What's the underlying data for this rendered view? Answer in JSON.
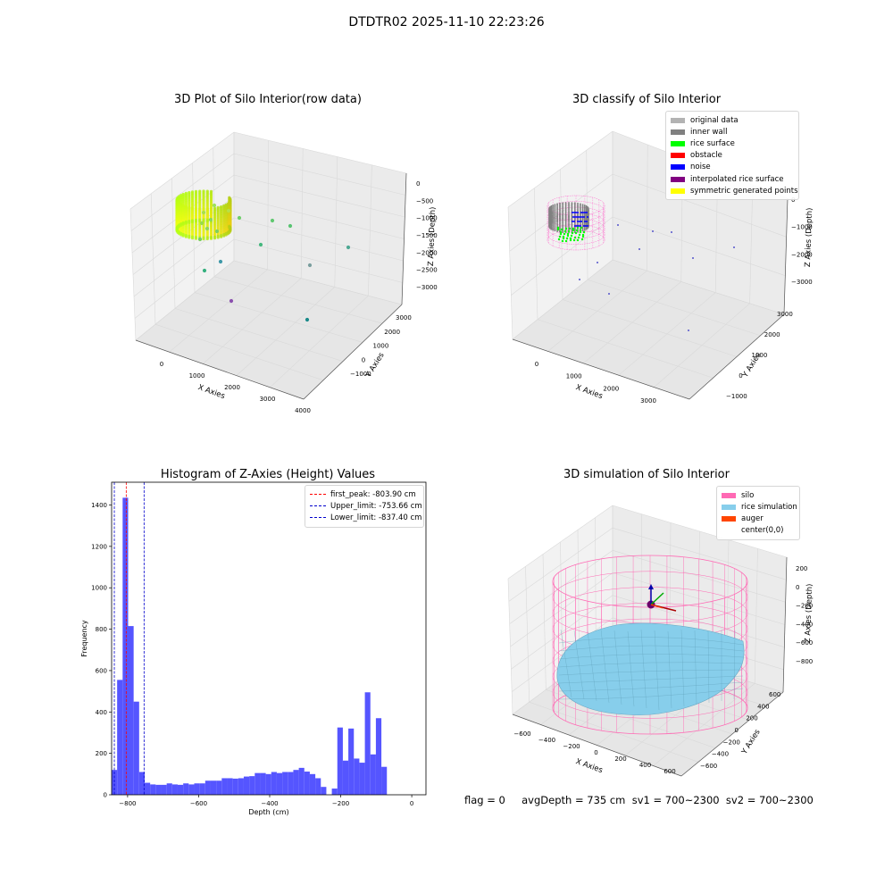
{
  "figure": {
    "suptitle": "DTDTR02 2025-11-10 22:23:26",
    "footer": "flag = 0     avgDepth = 735 cm  sv1 = 700~2300  sv2 = 700~2300"
  },
  "colors": {
    "original_data": "#b3b3b3",
    "inner_wall": "#808080",
    "rice_surface": "#00ff00",
    "obstacle": "#ff0000",
    "noise": "#0000ff",
    "interpolated": "#800080",
    "symmetric": "#ffff00",
    "silo": "#ff69b4",
    "rice_sim": "#87ceeb",
    "auger": "#ff4500",
    "hist_bar": "#5555ff"
  },
  "chart_data": [
    {
      "type": "scatter",
      "title": "3D Plot of Silo Interior(row data)",
      "xlabel": "X Axies",
      "ylabel": "Y Axies",
      "zlabel": "Z Axies (Depth)",
      "x_ticks": [
        "0",
        "1000",
        "2000",
        "3000",
        "4000"
      ],
      "y_ticks": [
        "−1000",
        "0",
        "1000",
        "2000",
        "3000"
      ],
      "z_ticks": [
        "0",
        "−500",
        "−1000",
        "−1500",
        "−2000",
        "−2500",
        "−3000"
      ]
    },
    {
      "type": "scatter",
      "title": "3D classify of Silo Interior",
      "xlabel": "X Axies",
      "ylabel": "Y Axies",
      "zlabel": "Z Axies (Depth)",
      "x_ticks": [
        "0",
        "1000",
        "2000",
        "3000"
      ],
      "y_ticks": [
        "−1000",
        "0",
        "1000",
        "2000",
        "3000"
      ],
      "z_ticks": [
        "0",
        "−1000",
        "−2000",
        "−3000"
      ],
      "legend": [
        {
          "label": "original data",
          "color": "#b3b3b3"
        },
        {
          "label": "inner wall",
          "color": "#808080"
        },
        {
          "label": "rice surface",
          "color": "#00ff00"
        },
        {
          "label": "obstacle",
          "color": "#ff0000"
        },
        {
          "label": "noise",
          "color": "#0000ff"
        },
        {
          "label": "interpolated rice surface",
          "color": "#800080"
        },
        {
          "label": "symmetric generated points",
          "color": "#ffff00"
        }
      ]
    },
    {
      "type": "bar",
      "title": "Histogram of Z-Axies (Height) Values",
      "xlabel": "Depth (cm)",
      "ylabel": "Frequency",
      "xlim": [
        -845,
        40
      ],
      "ylim": [
        0,
        1510
      ],
      "x_ticks": [
        -800,
        -600,
        -400,
        -200,
        0
      ],
      "y_ticks": [
        0,
        200,
        400,
        600,
        800,
        1000,
        1200,
        1400
      ],
      "bin_start": -845,
      "bin_width": 15.5,
      "values": [
        120,
        555,
        1435,
        815,
        450,
        110,
        58,
        50,
        48,
        48,
        55,
        50,
        48,
        55,
        50,
        55,
        55,
        68,
        68,
        68,
        80,
        80,
        78,
        80,
        88,
        90,
        105,
        105,
        100,
        110,
        105,
        110,
        110,
        120,
        130,
        112,
        100,
        80,
        38,
        0,
        30,
        325,
        165,
        320,
        175,
        155,
        495,
        195,
        370,
        135
      ],
      "vlines": [
        {
          "label": "first_peak: -803.90 cm",
          "x": -803.9,
          "color": "#ff0000"
        },
        {
          "label": "Upper_limit: -753.66 cm",
          "x": -753.66,
          "color": "#0000cc"
        },
        {
          "label": "Lower_limit: -837.40 cm",
          "x": -837.4,
          "color": "#0000cc"
        }
      ]
    },
    {
      "type": "scatter",
      "title": "3D simulation of Silo Interior",
      "xlabel": "X Axies",
      "ylabel": "Y Axies",
      "zlabel": "Z Axies (Depth)",
      "x_ticks": [
        "−600",
        "−400",
        "−200",
        "0",
        "200",
        "400",
        "600"
      ],
      "y_ticks": [
        "−600",
        "−400",
        "−200",
        "0",
        "200",
        "400",
        "600"
      ],
      "z_ticks": [
        "200",
        "0",
        "−200",
        "−400",
        "−600",
        "−800"
      ],
      "legend": [
        {
          "label": "silo",
          "color": "#ff69b4"
        },
        {
          "label": "rice simulation",
          "color": "#87ceeb"
        },
        {
          "label": "auger",
          "color": "#ff4500"
        },
        {
          "label": "center(0,0)",
          "color": "#ffffff"
        }
      ]
    }
  ]
}
